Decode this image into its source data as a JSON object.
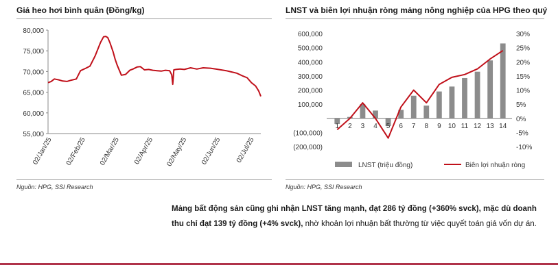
{
  "left_chart_title": "Giá heo hơi bình quân (Đồng/kg)",
  "right_chart_title": "LNST và biên lợi nhuận ròng mảng nông nghiệp của HPG theo quý",
  "source_left": "Nguồn: HPG, SSI Research",
  "source_right": "Nguồn: HPG, SSI Research",
  "paragraph": {
    "bold_part": "Mảng bất động sản cũng ghi nhận LNST tăng mạnh, đạt 286 tỷ đồng (+360% svck), mặc dù doanh thu chỉ đạt 139 tỷ đồng (+4% svck),",
    "normal_part": " nhờ khoản lợi nhuận bất thường từ việc quyết toán giá vốn dự án."
  },
  "colors": {
    "line": "#c0101a",
    "bar": "#8c8c8c",
    "accent_rule": "#b0334a"
  },
  "chart_data": [
    {
      "type": "line",
      "title": "Giá heo hơi bình quân (Đồng/kg)",
      "ylim": [
        55000,
        80000
      ],
      "y_ticks": [
        55000,
        60000,
        65000,
        70000,
        75000,
        80000
      ],
      "y_tick_labels": [
        "55,000",
        "60,000",
        "65,000",
        "70,000",
        "75,000",
        "80,000"
      ],
      "x_tick_labels": [
        "02/Jan/25",
        "02/Feb/25",
        "02/Mar/25",
        "02/Apr/25",
        "02/May/25",
        "02/Jun/25",
        "02/Jul/25"
      ],
      "x_range_days": [
        0,
        203
      ],
      "grid": false,
      "series": [
        {
          "x": [
            0,
            3,
            6,
            10,
            14,
            18,
            22,
            27,
            31,
            36,
            40,
            45,
            50,
            53,
            55,
            57,
            59,
            62,
            64,
            66,
            70,
            74,
            78,
            81,
            85,
            88,
            92,
            96,
            100,
            104,
            108,
            112,
            116,
            118,
            119,
            120,
            122,
            126,
            130,
            136,
            142,
            148,
            155,
            160,
            165,
            170,
            175,
            180,
            185,
            190,
            194,
            198,
            201,
            203
          ],
          "y": [
            67300,
            67600,
            68200,
            68000,
            67700,
            67600,
            67900,
            68200,
            70200,
            70800,
            71300,
            73800,
            77000,
            78400,
            78500,
            78200,
            77000,
            74800,
            73000,
            71500,
            69100,
            69300,
            70300,
            70600,
            71100,
            71200,
            70400,
            70500,
            70300,
            70200,
            70100,
            70300,
            70200,
            69200,
            66900,
            70400,
            70500,
            70600,
            70500,
            70900,
            70600,
            70900,
            70800,
            70600,
            70400,
            70200,
            69900,
            69600,
            69000,
            68500,
            67300,
            66500,
            65300,
            64000
          ]
        }
      ]
    },
    {
      "type": "bar",
      "title": "LNST và biên lợi nhuận ròng mảng nông nghiệp của HPG theo quý",
      "categories": [
        "1",
        "2",
        "3",
        "4",
        "5",
        "6",
        "7",
        "8",
        "9",
        "10",
        "11",
        "12",
        "13",
        "14"
      ],
      "ylim": [
        -200000,
        600000
      ],
      "y_ticks": [
        -200000,
        -100000,
        0,
        100000,
        200000,
        300000,
        400000,
        500000,
        600000
      ],
      "y_tick_labels": [
        "(200,000)",
        "(100,000)",
        "",
        "100,000",
        "200,000",
        "300,000",
        "400,000",
        "500,000",
        "600,000"
      ],
      "y2lim": [
        -10,
        30
      ],
      "y2_ticks": [
        -10,
        -5,
        0,
        5,
        10,
        15,
        20,
        25,
        30
      ],
      "y2_tick_labels": [
        "-10%",
        "-5%",
        "0%",
        "5%",
        "10%",
        "15%",
        "20%",
        "25%",
        "30%"
      ],
      "legend_position": "bottom",
      "series": [
        {
          "name": "LNST (triệu đồng)",
          "type": "bar",
          "values": [
            -40000,
            10000,
            100000,
            55000,
            -55000,
            60000,
            160000,
            90000,
            190000,
            225000,
            285000,
            330000,
            410000,
            530000
          ]
        },
        {
          "name": "Biên lợi nhuận ròng",
          "type": "line",
          "axis": "secondary",
          "values": [
            -4,
            0,
            5.5,
            0,
            -7,
            4,
            10,
            5.5,
            12,
            14.5,
            15.5,
            17.5,
            21,
            24
          ]
        }
      ]
    }
  ]
}
